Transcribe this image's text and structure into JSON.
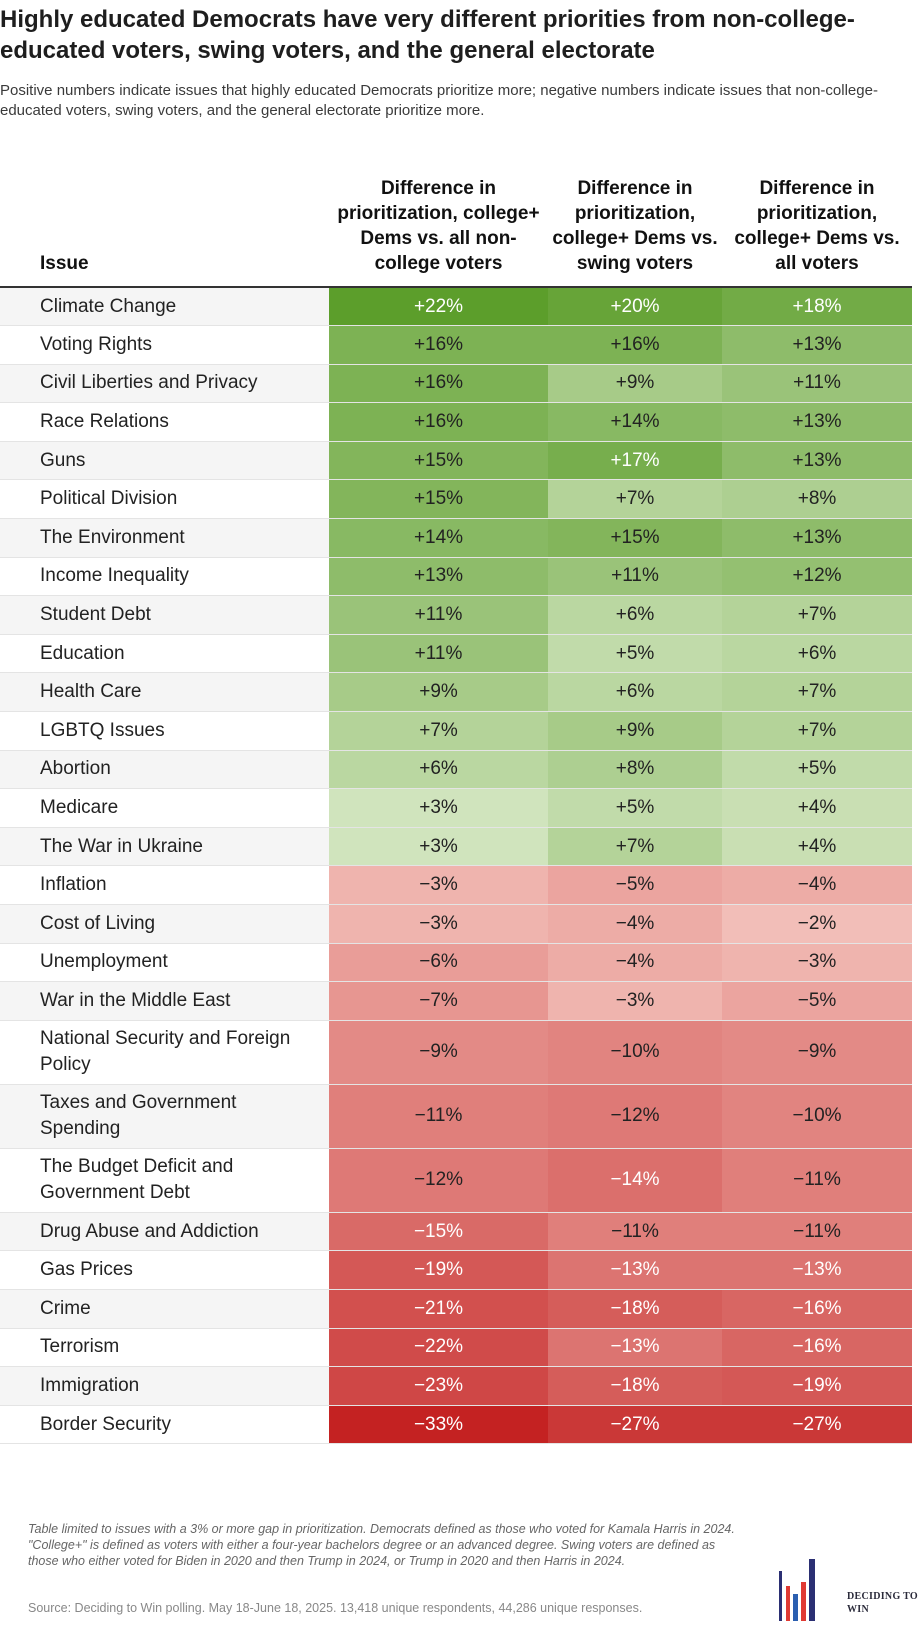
{
  "title": "Highly educated Democrats have very different priorities from non-college-educated voters, swing voters, and the general electorate",
  "subtitle": "Positive numbers indicate issues that highly educated Democrats prioritize more; negative numbers indicate issues that non-college-educated voters, swing voters, and the general electorate prioritize more.",
  "chart_data": {
    "type": "table",
    "columns": [
      "Issue",
      "Difference in prioritization, college+ Dems vs. all non-college voters",
      "Difference in prioritization, college+ Dems vs. swing voters",
      "Difference in prioritization, college+ Dems vs. all voters"
    ],
    "unit": "%",
    "rows": [
      {
        "issue": "Climate Change",
        "values": [
          22,
          20,
          18
        ]
      },
      {
        "issue": "Voting Rights",
        "values": [
          16,
          16,
          13
        ]
      },
      {
        "issue": "Civil Liberties and Privacy",
        "values": [
          16,
          9,
          11
        ]
      },
      {
        "issue": "Race Relations",
        "values": [
          16,
          14,
          13
        ]
      },
      {
        "issue": "Guns",
        "values": [
          15,
          17,
          13
        ]
      },
      {
        "issue": "Political Division",
        "values": [
          15,
          7,
          8
        ]
      },
      {
        "issue": "The Environment",
        "values": [
          14,
          15,
          13
        ]
      },
      {
        "issue": "Income Inequality",
        "values": [
          13,
          11,
          12
        ]
      },
      {
        "issue": "Student Debt",
        "values": [
          11,
          6,
          7
        ]
      },
      {
        "issue": "Education",
        "values": [
          11,
          5,
          6
        ]
      },
      {
        "issue": "Health Care",
        "values": [
          9,
          6,
          7
        ]
      },
      {
        "issue": "LGBTQ Issues",
        "values": [
          7,
          9,
          7
        ]
      },
      {
        "issue": "Abortion",
        "values": [
          6,
          8,
          5
        ]
      },
      {
        "issue": "Medicare",
        "values": [
          3,
          5,
          4
        ]
      },
      {
        "issue": "The War in Ukraine",
        "values": [
          3,
          7,
          4
        ]
      },
      {
        "issue": "Inflation",
        "values": [
          -3,
          -5,
          -4
        ]
      },
      {
        "issue": "Cost of Living",
        "values": [
          -3,
          -4,
          -2
        ]
      },
      {
        "issue": "Unemployment",
        "values": [
          -6,
          -4,
          -3
        ]
      },
      {
        "issue": "War in the Middle East",
        "values": [
          -7,
          -3,
          -5
        ]
      },
      {
        "issue": "National Security and Foreign Policy",
        "values": [
          -9,
          -10,
          -9
        ]
      },
      {
        "issue": "Taxes and Government Spending",
        "values": [
          -11,
          -12,
          -10
        ]
      },
      {
        "issue": "The Budget Deficit and Government Debt",
        "values": [
          -12,
          -14,
          -11
        ]
      },
      {
        "issue": "Drug Abuse and Addiction",
        "values": [
          -15,
          -11,
          -11
        ]
      },
      {
        "issue": "Gas Prices",
        "values": [
          -19,
          -13,
          -13
        ]
      },
      {
        "issue": "Crime",
        "values": [
          -21,
          -18,
          -16
        ]
      },
      {
        "issue": "Terrorism",
        "values": [
          -22,
          -13,
          -16
        ]
      },
      {
        "issue": "Immigration",
        "values": [
          -23,
          -18,
          -19
        ]
      },
      {
        "issue": "Border Security",
        "values": [
          -33,
          -27,
          -27
        ]
      }
    ],
    "color_scale": {
      "positive": "#5c9e2b",
      "negative": "#c42222",
      "neutral": "#ffffff"
    }
  },
  "footnote": "Table limited to issues with a 3% or more gap in prioritization. Democrats defined as those who voted for Kamala Harris in 2024. \"College+\" is defined as voters with either a four-year bachelors degree or an advanced degree. Swing voters are defined as those who either voted for Biden in 2020 and then Trump in 2024, or Trump in 2020 and then Harris in 2024.",
  "source": "Source: Deciding to Win polling. May 18-June 18, 2025. 13,418 unique respondents, 44,286 unique responses.",
  "logo": {
    "text": "DECIDING TO WIN"
  }
}
